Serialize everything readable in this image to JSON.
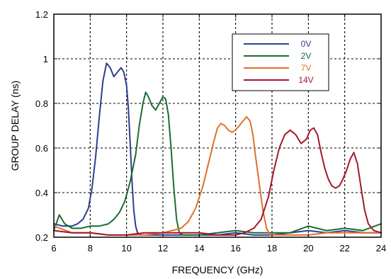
{
  "chart_data": {
    "type": "line",
    "title": "",
    "xlabel": "FREQUENCY (GHz)",
    "ylabel": "GROUP DELAY (ns)",
    "xlim": [
      6,
      24
    ],
    "ylim": [
      0.2,
      1.2
    ],
    "xticks": [
      "6",
      "8",
      "10",
      "12",
      "14",
      "16",
      "18",
      "20",
      "22",
      "24"
    ],
    "yticks": [
      "0.2",
      "0.4",
      "0.6",
      "0.8",
      "1",
      "1.2"
    ],
    "grid": true,
    "legend_position": "top-right",
    "series": [
      {
        "name": "0V",
        "color": "#2e3f8f",
        "x": [
          6.0,
          6.5,
          7.0,
          7.3,
          7.6,
          7.9,
          8.1,
          8.3,
          8.5,
          8.7,
          8.9,
          9.1,
          9.3,
          9.5,
          9.7,
          9.85,
          10.0,
          10.1,
          10.2,
          10.3,
          10.4,
          10.5,
          10.6,
          10.8,
          11.0,
          11.5,
          12.0,
          13.0,
          14.0,
          15.0,
          16.0,
          17.0,
          18.0,
          19.0,
          20.0,
          21.0,
          22.0,
          23.0,
          24.0
        ],
        "y": [
          0.26,
          0.25,
          0.25,
          0.26,
          0.28,
          0.33,
          0.42,
          0.56,
          0.74,
          0.9,
          0.98,
          0.96,
          0.92,
          0.94,
          0.96,
          0.94,
          0.88,
          0.78,
          0.62,
          0.45,
          0.32,
          0.25,
          0.22,
          0.21,
          0.21,
          0.21,
          0.21,
          0.21,
          0.21,
          0.21,
          0.22,
          0.21,
          0.21,
          0.22,
          0.23,
          0.22,
          0.23,
          0.22,
          0.22
        ]
      },
      {
        "name": "2V",
        "color": "#1d6b35",
        "x": [
          6.0,
          6.3,
          6.6,
          7.0,
          7.5,
          8.0,
          8.5,
          9.0,
          9.3,
          9.6,
          9.9,
          10.2,
          10.5,
          10.7,
          10.9,
          11.05,
          11.2,
          11.4,
          11.6,
          11.8,
          12.0,
          12.15,
          12.3,
          12.45,
          12.6,
          12.75,
          12.9,
          13.1,
          13.4,
          14.0,
          15.0,
          16.0,
          17.0,
          18.0,
          19.0,
          20.0,
          21.0,
          22.0,
          23.0,
          24.0
        ],
        "y": [
          0.23,
          0.3,
          0.26,
          0.24,
          0.24,
          0.25,
          0.25,
          0.26,
          0.28,
          0.31,
          0.36,
          0.45,
          0.57,
          0.7,
          0.8,
          0.85,
          0.83,
          0.79,
          0.77,
          0.8,
          0.83,
          0.82,
          0.75,
          0.6,
          0.42,
          0.28,
          0.22,
          0.21,
          0.21,
          0.21,
          0.22,
          0.23,
          0.22,
          0.22,
          0.22,
          0.25,
          0.23,
          0.24,
          0.23,
          0.26
        ]
      },
      {
        "name": "7V",
        "color": "#e0702a",
        "x": [
          6.0,
          7.0,
          8.0,
          9.0,
          10.0,
          11.0,
          12.0,
          12.5,
          13.0,
          13.4,
          13.8,
          14.2,
          14.5,
          14.8,
          15.0,
          15.2,
          15.4,
          15.6,
          15.8,
          16.0,
          16.2,
          16.4,
          16.6,
          16.8,
          16.95,
          17.1,
          17.3,
          17.5,
          17.7,
          17.9,
          18.2,
          19.0,
          20.0,
          21.0,
          22.0,
          23.0,
          24.0
        ],
        "y": [
          0.25,
          0.22,
          0.22,
          0.21,
          0.21,
          0.21,
          0.22,
          0.23,
          0.24,
          0.27,
          0.33,
          0.43,
          0.53,
          0.63,
          0.69,
          0.71,
          0.7,
          0.68,
          0.67,
          0.68,
          0.7,
          0.72,
          0.74,
          0.72,
          0.66,
          0.56,
          0.44,
          0.32,
          0.24,
          0.21,
          0.21,
          0.21,
          0.21,
          0.22,
          0.22,
          0.22,
          0.22
        ]
      },
      {
        "name": "14V",
        "color": "#a3182a",
        "x": [
          6.0,
          7.0,
          8.0,
          9.0,
          10.0,
          11.0,
          12.0,
          13.0,
          14.0,
          15.0,
          16.0,
          16.5,
          17.0,
          17.4,
          17.8,
          18.1,
          18.4,
          18.7,
          19.0,
          19.3,
          19.6,
          19.9,
          20.1,
          20.3,
          20.5,
          20.7,
          20.9,
          21.1,
          21.3,
          21.5,
          21.7,
          21.9,
          22.1,
          22.3,
          22.5,
          22.7,
          22.9,
          23.1,
          23.3,
          23.6,
          24.0
        ],
        "y": [
          0.23,
          0.22,
          0.22,
          0.21,
          0.21,
          0.22,
          0.22,
          0.22,
          0.22,
          0.21,
          0.21,
          0.22,
          0.24,
          0.28,
          0.38,
          0.5,
          0.6,
          0.66,
          0.68,
          0.66,
          0.62,
          0.64,
          0.68,
          0.69,
          0.66,
          0.58,
          0.51,
          0.46,
          0.43,
          0.42,
          0.43,
          0.46,
          0.5,
          0.55,
          0.58,
          0.53,
          0.42,
          0.32,
          0.26,
          0.23,
          0.22
        ]
      }
    ]
  }
}
